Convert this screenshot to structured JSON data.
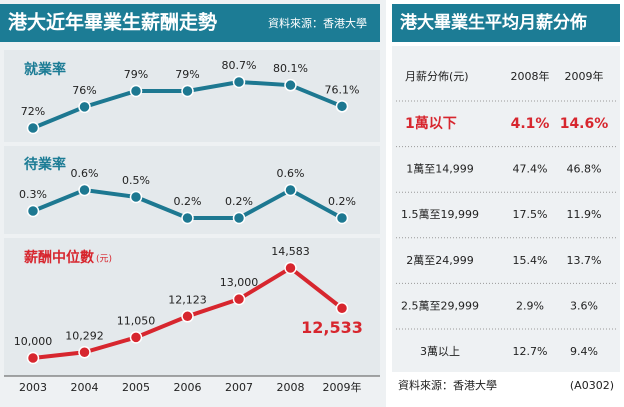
{
  "header": {
    "title": "港大近年畢業生薪酬走勢",
    "source": "資料來源：香港大學"
  },
  "chart_data": [
    {
      "type": "line",
      "title": "就業率",
      "color": "#1d7891",
      "values": [
        72,
        76,
        79,
        79,
        80.7,
        80.1,
        76.1
      ],
      "value_labels": [
        "72%",
        "76%",
        "79%",
        "79%",
        "80.7%",
        "80.1%",
        "76.1%"
      ]
    },
    {
      "type": "line",
      "title": "待業率",
      "color": "#1d7891",
      "values": [
        0.3,
        0.6,
        0.5,
        0.2,
        0.2,
        0.6,
        0.2
      ],
      "value_labels": [
        "0.3%",
        "0.6%",
        "0.5%",
        "0.2%",
        "0.2%",
        "0.6%",
        "0.2%"
      ]
    },
    {
      "type": "line",
      "title": "薪酬中位數",
      "unit": "(元)",
      "color": "#d7262e",
      "categories": [
        "2003",
        "2004",
        "2005",
        "2006",
        "2007",
        "2008",
        "2009年"
      ],
      "values": [
        10000,
        10292,
        11050,
        12123,
        13000,
        14583,
        12533
      ],
      "value_labels": [
        "10,000",
        "10,292",
        "11,050",
        "12,123",
        "13,000",
        "14,583",
        "12,533"
      ]
    }
  ],
  "table": {
    "title": "港大畢業生平均月薪分佈",
    "header": [
      "月薪分佈(元)",
      "2008年",
      "2009年"
    ],
    "rows": [
      [
        "1萬以下",
        "4.1%",
        "14.6%"
      ],
      [
        "1萬至14,999",
        "47.4%",
        "46.8%"
      ],
      [
        "1.5萬至19,999",
        "17.5%",
        "11.9%"
      ],
      [
        "2萬至24,999",
        "15.4%",
        "13.7%"
      ],
      [
        "2.5萬至29,999",
        "2.9%",
        "3.6%"
      ],
      [
        "3萬以上",
        "12.7%",
        "9.4%"
      ]
    ],
    "source": "資料來源：香港大學",
    "code": "(A0302)"
  }
}
